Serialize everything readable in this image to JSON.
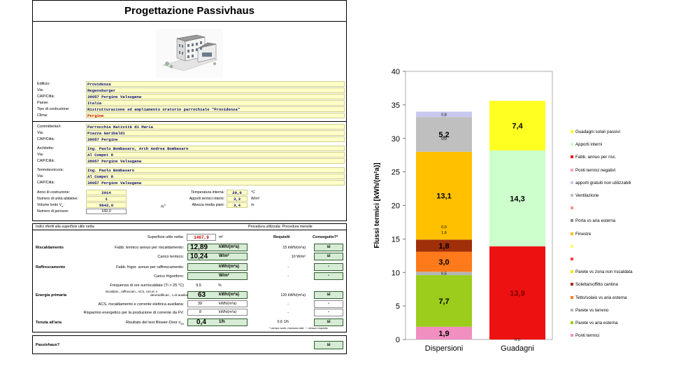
{
  "form": {
    "title": "Progettazione Passivhaus",
    "fields": [
      {
        "label": "Edificio:",
        "value": "Providenza"
      },
      {
        "label": "Via:",
        "value": "Regensburger"
      },
      {
        "label": "CAP/Città:",
        "value": "38057 Pergine Valsugana"
      },
      {
        "label": "Paese:",
        "value": "Italia"
      },
      {
        "label": "Tipo di costruzione:",
        "value": "Ristrutturazione ed ampliamento oratorio parrochiale \"Providenza\""
      },
      {
        "label": "Clima:",
        "value": "Pergine"
      }
    ],
    "committente": [
      {
        "label": "Committente/i:",
        "value": "Parrocchia Natività di Maria"
      },
      {
        "label": "Via:",
        "value": "Piazza Garibaldi"
      },
      {
        "label": "CAP/Città:",
        "value": "38057 Pergine"
      }
    ],
    "architetto": [
      {
        "label": "Architetto:",
        "value": "Ing. Paolo Bombasaro, Arch Andrea Bombasaro"
      },
      {
        "label": "Via:",
        "value": "Al Compet 8"
      },
      {
        "label": "CAP/Città:",
        "value": "38057 Pergine Valsugana"
      }
    ],
    "termotecnico": [
      {
        "label": "Termotecnico/a:",
        "value": "Ing. Paolo Bombasaro"
      },
      {
        "label": "Via:",
        "value": "Al Compet 8"
      },
      {
        "label": "CAP/Città:",
        "value": "38057 Pergine Valsugana"
      }
    ],
    "params": {
      "anno_label": "Anno di costruzione:",
      "anno": "2014",
      "unita_label": "Numero di unità abitative:",
      "unita": "1",
      "volume_label": "Volume lordo V",
      "volume_sub": "e",
      "volume_colon": ":",
      "volume": "9642,0",
      "volume_unit": "m",
      "volume_exp": "3",
      "persone_label": "Numero di persone:",
      "persone": "160,0",
      "temp_label": "Temperatura interna:",
      "temp": "20,0",
      "temp_unit": "°C",
      "apporti_label": "Apporti termici interni:",
      "apporti": "3,3",
      "apporti_unit": "W/m²",
      "altezza_label": "Altezza media piani:",
      "altezza": "3,4",
      "altezza_unit": "m"
    },
    "results": {
      "header_left": "Indici riferiti alla superficie utile netta:",
      "header_right": "Procedura utilizzata: Procedura mensile",
      "superficie_label": "Superficie utile netta:",
      "superficie": "1467,9",
      "superficie_unit": "m²",
      "requisiti": "Requisiti",
      "conseguito": "Conseguito?*",
      "riscaldamento": "Riscaldamento",
      "fabb_risc_label": "Fabb. termico annuo per riscaldamento:",
      "fabb_risc": "12,89",
      "fabb_risc_unit": "kWh/(m²a)",
      "fabb_risc_req": "15 kWh/(m²a)",
      "fabb_risc_ok": "si",
      "carico_label": "Carico termico:",
      "carico": "10,24",
      "carico_unit": "W/m²",
      "carico_req": "10 W/m²",
      "carico_ok": "si",
      "raffrescamento": "Raffrescamento",
      "fabb_raff_label": "Fabb. frigor. annuo per raffrescamento:",
      "fabb_raff_unit": "kWh/(m²a)",
      "fabb_raff_req": "-",
      "fabb_raff_ok": "-",
      "carico_frig_label": "Carico frigorifero:",
      "carico_frig_unit": "W/m²",
      "carico_frig_req": "-",
      "carico_frig_ok": "-",
      "freq_label": "Frequenza di ore surriscaldate (Ti > 25 °C)",
      "freq": "9,5",
      "freq_unit": "%",
      "energia": "Energia primaria",
      "ep_label_small": "riscaldam., raffrescam., ACS, corr.el. e",
      "ep_label_2": "deumidificaz., c.el.ausiliaria:",
      "ep": "63",
      "ep_unit": "kWh/(m²a)",
      "ep_req": "120 kWh/(m²a)",
      "ep_ok": "si",
      "acs_label": "ACS, riscaldamento e corrente elettrica ausiliaria:",
      "acs": "39",
      "acs_unit": "kWh/(m²a)",
      "acs_req": "-",
      "acs_ok": "-",
      "risp_label": "Risparmio energetico per la produzione di corrente da FV:",
      "risp": "8",
      "risp_unit": "kWh/(m²a)",
      "risp_req": "-",
      "risp_ok": "-",
      "tenuta": "Tenuta all'aria",
      "blower_label": "Risultato del test Blower-Door n",
      "blower_sub": "50",
      "blower": "0,4",
      "blower_unit": "1/h",
      "blower_req": "0,6 1/h",
      "blower_ok": "si",
      "footnote": "* campo vuoto: mancano dati; '-': nessun requisito"
    },
    "passivhaus_label": "Passivhaus?",
    "passivhaus_value": "si"
  },
  "chart_data": {
    "type": "bar",
    "stacked": true,
    "ylabel": "Flussi termici [kWh/(m²a)]",
    "ylim": [
      0,
      40
    ],
    "yticks": [
      0,
      5,
      10,
      15,
      20,
      25,
      30,
      35,
      40
    ],
    "categories": [
      "Dispersioni",
      "Guadagni"
    ],
    "series": [
      {
        "name": "Ponti termici",
        "color": "#f08fc0",
        "values": [
          1.9,
          0
        ],
        "labels": [
          "1,9",
          ""
        ]
      },
      {
        "name": "Parete vs aria esterna",
        "color": "#9ccc1c",
        "values": [
          7.7,
          0
        ],
        "labels": [
          "7,7",
          ""
        ]
      },
      {
        "name": "Parete vs terreno",
        "color": "#b4b4b4",
        "values": [
          0.5,
          0
        ],
        "labels": [
          "0,5",
          ""
        ]
      },
      {
        "name": "Tetto/solaio vs aria esterna",
        "color": "#ff7a1a",
        "values": [
          3.0,
          0
        ],
        "labels": [
          "3,0",
          ""
        ]
      },
      {
        "name": "Soletta/soffitto cantina",
        "color": "#a0300a",
        "values": [
          1.8,
          0
        ],
        "labels": [
          "1,8",
          ""
        ]
      },
      {
        "name": "Parete vs zona non riscaldata",
        "color": "#f2e200",
        "values": [
          0.0,
          0
        ],
        "labels": [
          "",
          ""
        ]
      },
      {
        "name": "",
        "color": "#ff3b3b",
        "values": [
          0,
          0
        ],
        "labels": [
          "",
          ""
        ]
      },
      {
        "name": "",
        "color": "#ffff66",
        "values": [
          0,
          0
        ],
        "labels": [
          "",
          ""
        ]
      },
      {
        "name": "Finestre",
        "color": "#ffc000",
        "values": [
          13.1,
          0
        ],
        "labels": [
          "13,1",
          ""
        ]
      },
      {
        "name": "Porta vs aria esterna",
        "color": "#8c8c8c",
        "values": [
          0.0,
          0
        ],
        "labels": [
          "",
          ""
        ]
      },
      {
        "name": "",
        "color": "#ff9090",
        "values": [
          0,
          0
        ],
        "labels": [
          "",
          ""
        ]
      },
      {
        "name": "Ventilazione",
        "color": "#bfbfbf",
        "values": [
          5.2,
          0
        ],
        "labels": [
          "5,2",
          ""
        ]
      },
      {
        "name": "apporti gratuiti non utilizzabili",
        "color": "#c8c8f0",
        "values": [
          0.8,
          0
        ],
        "labels": [
          "0,8",
          ""
        ]
      },
      {
        "name": "Ponti termici negativi",
        "color": "#ff9ec0",
        "values": [
          0,
          0
        ],
        "labels": [
          "",
          ""
        ]
      },
      {
        "name": "Fabb. annuo per risc.",
        "color": "#ee1111",
        "values": [
          0,
          13.9
        ],
        "labels": [
          "",
          "13,9"
        ]
      },
      {
        "name": "Apporti interni",
        "color": "#ccffcc",
        "values": [
          0,
          14.3
        ],
        "labels": [
          "",
          "14,3"
        ]
      },
      {
        "name": "Guadagni solari passivi",
        "color": "#ffff22",
        "values": [
          0,
          7.4
        ],
        "labels": [
          "",
          "7,4"
        ]
      }
    ],
    "small_labels": [
      {
        "text": "0,0",
        "category": 0,
        "y": 30.0
      },
      {
        "text": "0,0",
        "category": 0,
        "y": 16.8
      },
      {
        "text": "1,6",
        "category": 0,
        "y": 16.0
      },
      {
        "text": "0,0",
        "category": 1,
        "y": 0.0
      }
    ],
    "legend_order": [
      "Guadagni solari passivi",
      "Apporti interni",
      "Fabb. annuo per risc.",
      "Ponti termici negativi",
      "apporti gratuiti non utilizzabili",
      "Ventilazione",
      "",
      "Porta vs aria esterna",
      "Finestre",
      "",
      "",
      "Parete vs zona non riscaldata",
      "Soletta/soffitto cantina",
      "Tetto/solaio vs aria esterna",
      "Parete vs terreno",
      "Parete vs aria esterna",
      "Ponti termici"
    ],
    "legend_colors": [
      "#ffff22",
      "#ccffcc",
      "#ee1111",
      "#ff9ec0",
      "#c8c8f0",
      "#bfbfbf",
      "#ff9090",
      "#8c8c8c",
      "#ffc000",
      "#ffff66",
      "#ff3b3b",
      "#f2e200",
      "#a0300a",
      "#ff7a1a",
      "#b4b4b4",
      "#9ccc1c",
      "#f08fc0"
    ]
  }
}
